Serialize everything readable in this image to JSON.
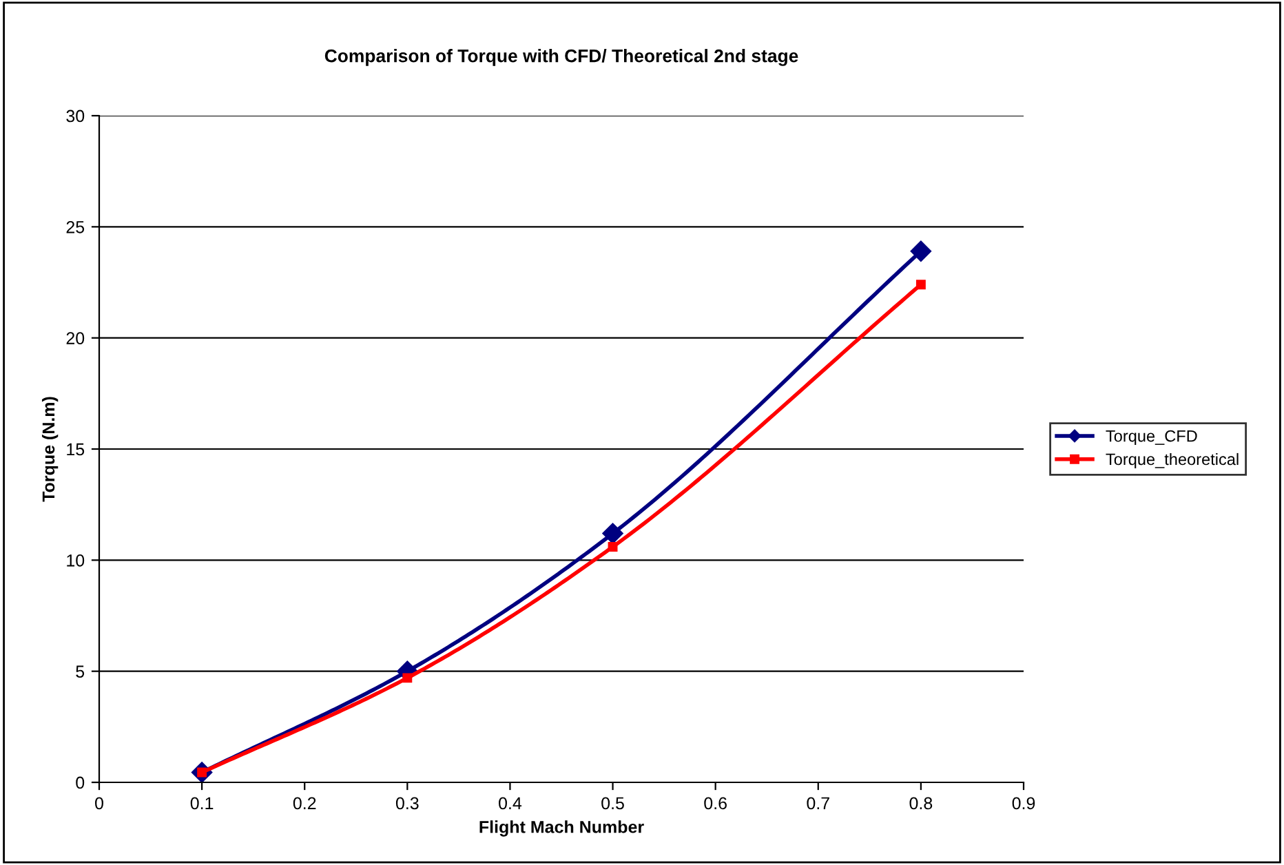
{
  "chart_data": {
    "type": "line",
    "title": "Comparison of Torque with CFD/ Theoretical 2nd stage",
    "xlabel": "Flight Mach Number",
    "ylabel": "Torque (N.m)",
    "x": [
      0.1,
      0.3,
      0.5,
      0.8
    ],
    "series": [
      {
        "name": "Torque_CFD",
        "color": "#000080",
        "marker": "diamond",
        "values": [
          0.45,
          5.0,
          11.2,
          23.9
        ]
      },
      {
        "name": "Torque_theoretical",
        "color": "#ff0000",
        "marker": "square",
        "values": [
          0.45,
          4.7,
          10.6,
          22.4
        ]
      }
    ],
    "xlim": [
      0,
      0.9
    ],
    "xticks": [
      0,
      0.1,
      0.2,
      0.3,
      0.4,
      0.5,
      0.6,
      0.7,
      0.8,
      0.9
    ],
    "ylim": [
      0,
      30
    ],
    "yticks": [
      0,
      5,
      10,
      15,
      20,
      25,
      30
    ],
    "grid": "y",
    "legend": "right",
    "line_style": "solid"
  }
}
